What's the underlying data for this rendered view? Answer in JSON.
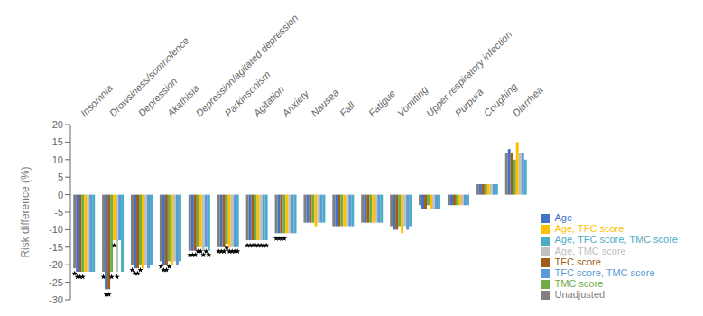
{
  "chart_data": {
    "type": "bar",
    "categories": [
      "Insomnia",
      "Drowsiness/somnolence",
      "Depression",
      "Akathisia",
      "Depression/agitated depression",
      "Parkinsonism",
      "Agitation",
      "Anxiety",
      "Nausea",
      "Fall",
      "Fatigue",
      "Vomiting",
      "Upper respiratory infection",
      "Purpura",
      "Coughing",
      "Diarrhea"
    ],
    "series": [
      {
        "name": "Unadjusted",
        "color": "#808080",
        "values": [
          -21,
          -22,
          -20,
          -19,
          -16,
          -15,
          -13,
          -11,
          -8,
          -9,
          -8,
          -9,
          -3,
          -3,
          3,
          12
        ],
        "stars": [
          -22.5,
          -23.5,
          -21.5,
          -20.5,
          -17.2,
          -16.2,
          -14.5,
          -12.5,
          null,
          null,
          null,
          null,
          null,
          null,
          null,
          null
        ]
      },
      {
        "name": "Age",
        "color": "#4472C4",
        "values": [
          -22,
          -27,
          -21,
          -20,
          -16,
          -15,
          -13,
          -11,
          -8,
          -9,
          -8,
          -10,
          -4,
          -3,
          3,
          13
        ],
        "stars": [
          -23.5,
          -28.5,
          -22.5,
          -21.5,
          -17.2,
          -16.2,
          -14.5,
          -12.5,
          null,
          null,
          null,
          null,
          null,
          null,
          null,
          null
        ]
      },
      {
        "name": "TFC score",
        "color": "#9E5E1A",
        "values": [
          -22,
          -27,
          -21,
          -20,
          -16,
          -15,
          -13,
          -11,
          -8,
          -9,
          -8,
          -10,
          -4,
          -3,
          3,
          12
        ],
        "stars": [
          -23.5,
          -28.5,
          -22.5,
          -21.5,
          -17.2,
          -16.2,
          -14.5,
          -12.5,
          null,
          null,
          null,
          null,
          null,
          null,
          null,
          null
        ]
      },
      {
        "name": "TMC score",
        "color": "#70AD47",
        "values": [
          -22,
          -22,
          -20,
          -19,
          -15,
          -14,
          -13,
          -11,
          -8,
          -9,
          -8,
          -9,
          -3,
          -3,
          3,
          10
        ],
        "stars": [
          -23.5,
          -23.5,
          -21.5,
          -20.5,
          -16.2,
          -15.2,
          -14.5,
          -12.5,
          null,
          null,
          null,
          null,
          null,
          null,
          null,
          null
        ]
      },
      {
        "name": "Age, TFC score",
        "color": "#FFC000",
        "values": [
          -22,
          -13,
          -21,
          -20,
          -15,
          -15,
          -13,
          -11,
          -9,
          -9,
          -8,
          -11,
          -4,
          -3,
          3,
          15
        ],
        "stars": [
          null,
          -14.5,
          null,
          null,
          -16.2,
          -16.2,
          -14.5,
          null,
          null,
          null,
          null,
          null,
          null,
          null,
          null,
          null
        ]
      },
      {
        "name": "Age, TMC score",
        "color": "#C0C0C0",
        "values": [
          -22,
          -22,
          -20,
          -19,
          -16,
          -15,
          -13,
          -11,
          -8,
          -9,
          -8,
          -9,
          -4,
          -3,
          3,
          12
        ],
        "stars": [
          null,
          -23.5,
          null,
          null,
          -17.2,
          -16.2,
          -14.5,
          null,
          null,
          null,
          null,
          null,
          null,
          null,
          null,
          null
        ]
      },
      {
        "name": "TFC score, TMC score",
        "color": "#5B9BD5",
        "values": [
          -22,
          -13,
          -21,
          -20,
          -15,
          -15,
          -13,
          -11,
          -8,
          -9,
          -8,
          -10,
          -4,
          -3,
          3,
          12
        ],
        "stars": [
          null,
          null,
          null,
          null,
          -16.2,
          -16.2,
          -14.5,
          null,
          null,
          null,
          null,
          null,
          null,
          null,
          null,
          null
        ]
      },
      {
        "name": "Age, TFC score, TMC score",
        "color": "#4BACC6",
        "values": [
          -22,
          -22,
          -20,
          -19,
          -16,
          -15,
          -13,
          -11,
          -8,
          -9,
          -8,
          -9,
          -4,
          -3,
          3,
          10
        ],
        "stars": [
          null,
          null,
          null,
          null,
          -17.2,
          -16.2,
          -14.5,
          null,
          null,
          null,
          null,
          null,
          null,
          null,
          null,
          null
        ]
      }
    ],
    "ylabel": "Risk difference (%)",
    "ylim": [
      -30,
      20
    ],
    "yticks": [
      -30,
      -25,
      -20,
      -15,
      -10,
      -5,
      0,
      5,
      10,
      15,
      20
    ],
    "grid": false,
    "legend": "lower right"
  }
}
